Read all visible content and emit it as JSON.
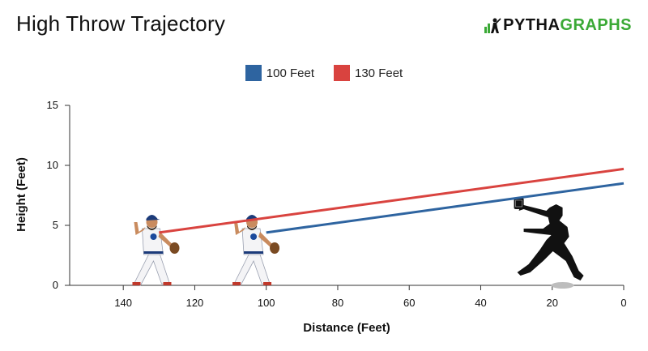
{
  "header": {
    "title": "High Throw Trajectory",
    "brand_part1": "PYTHA",
    "brand_part2": "GRAPHS"
  },
  "colors": {
    "series_100": "#2e64a0",
    "series_130": "#d9433f",
    "axis": "#333333",
    "brand_green": "#3aa935"
  },
  "chart_data": {
    "type": "line",
    "title": "High Throw Trajectory",
    "xlabel": "Distance (Feet)",
    "ylabel": "Height (Feet)",
    "xlim": [
      155,
      0
    ],
    "ylim": [
      0,
      15
    ],
    "x_ticks": [
      140,
      120,
      100,
      80,
      60,
      40,
      20,
      0
    ],
    "y_ticks": [
      0,
      5,
      10,
      15
    ],
    "grid": false,
    "legend_position": "top-center",
    "series": [
      {
        "name": "100 Feet",
        "color": "#2e64a0",
        "points": [
          [
            100,
            4.4
          ],
          [
            0,
            8.5
          ]
        ]
      },
      {
        "name": "130 Feet",
        "color": "#d9433f",
        "points": [
          [
            130,
            4.4
          ],
          [
            0,
            9.7
          ]
        ]
      }
    ],
    "images": [
      {
        "icon": "thrower-player-icon",
        "x": 132
      },
      {
        "icon": "thrower-player-icon",
        "x": 104
      },
      {
        "icon": "fielder-silhouette-icon",
        "x": 18
      }
    ]
  }
}
